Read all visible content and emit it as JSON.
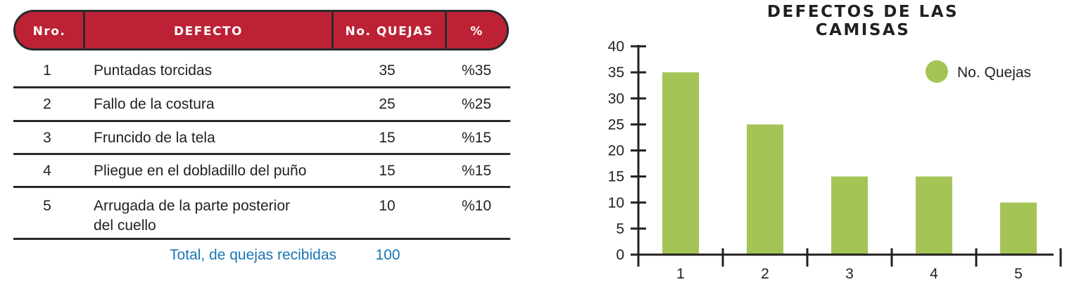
{
  "table": {
    "headers": [
      "Nro.",
      "DEFECTO",
      "No. QUEJAS",
      "%"
    ],
    "rows": [
      {
        "nro": "1",
        "defecto": "Puntadas torcidas",
        "quejas": "35",
        "pct": "%35"
      },
      {
        "nro": "2",
        "defecto": "Fallo de la costura",
        "quejas": "25",
        "pct": "%25"
      },
      {
        "nro": "3",
        "defecto": "Fruncido de la tela",
        "quejas": "15",
        "pct": "%15"
      },
      {
        "nro": "4",
        "defecto": "Pliegue en el dobladillo del puño",
        "quejas": "15",
        "pct": "%15"
      },
      {
        "nro": "5",
        "defecto_line1": "Arrugada de la parte posterior",
        "defecto_line2": "del cuello",
        "quejas": "10",
        "pct": "%10"
      }
    ],
    "total_label": "Total, de quejas recibidas",
    "total_value": "100"
  },
  "colors": {
    "header_fill": "#bd2135",
    "bar": "#a4c556",
    "total_text": "#1a76b5"
  },
  "chart_data": {
    "type": "bar",
    "title": "DEFECTOS DE LAS CAMISAS",
    "categories": [
      "1",
      "2",
      "3",
      "4",
      "5"
    ],
    "series": [
      {
        "name": "No. Quejas",
        "values": [
          35,
          25,
          15,
          15,
          10
        ]
      }
    ],
    "xlabel": "",
    "ylabel": "",
    "ylim": [
      0,
      40
    ],
    "yticks": [
      0,
      5,
      10,
      15,
      20,
      25,
      30,
      35,
      40
    ],
    "grid": false,
    "legend": "top-right"
  }
}
